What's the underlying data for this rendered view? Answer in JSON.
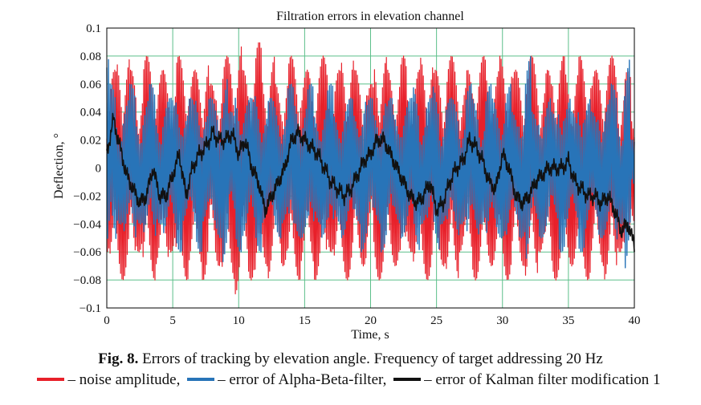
{
  "chart_data": {
    "type": "line",
    "title": "Filtration errors in elevation channel",
    "xlabel": "Time, s",
    "ylabel": "Deflection, °",
    "xlim": [
      0,
      40
    ],
    "ylim": [
      -0.1,
      0.1
    ],
    "x_ticks": [
      "0",
      "5",
      "10",
      "15",
      "20",
      "25",
      "30",
      "35",
      "40"
    ],
    "y_ticks": [
      "0.1",
      "0.08",
      "0.06",
      "0.04",
      "0.02",
      "0",
      "−0.02",
      "−0.04",
      "−0.06",
      "−0.08",
      "−0.1"
    ],
    "grid": true,
    "legend_position": "below",
    "series": [
      {
        "name": "noise amplitude",
        "color": "#e8202a",
        "note_samples_per_s": 20,
        "x": [
          0,
          0.5,
          1,
          1.5,
          2,
          2.5,
          3,
          3.5,
          4,
          4.5,
          5,
          5.5,
          6,
          6.5,
          7,
          7.5,
          8,
          8.5,
          9,
          9.5,
          10,
          10.5,
          11,
          11.5,
          12,
          12.5,
          13,
          13.5,
          14,
          14.5,
          15,
          15.5,
          16,
          16.5,
          17,
          17.5,
          18,
          18.5,
          19,
          19.5,
          20,
          20.5,
          21,
          21.5,
          22,
          22.5,
          23,
          23.5,
          24,
          24.5,
          25,
          25.5,
          26,
          26.5,
          27,
          27.5,
          28,
          28.5,
          29,
          29.5,
          30,
          30.5,
          31,
          31.5,
          32,
          32.5,
          33,
          33.5,
          34,
          34.5,
          35,
          35.5,
          36,
          36.5,
          37,
          37.5,
          38,
          38.5,
          39,
          39.5,
          40
        ],
        "y": [
          0.06,
          -0.07,
          0.08,
          -0.08,
          0.07,
          -0.06,
          0.08,
          -0.08,
          0.07,
          -0.07,
          0.06,
          -0.08,
          0.08,
          -0.07,
          0.07,
          -0.08,
          0.06,
          -0.07,
          0.08,
          -0.08,
          0.09,
          -0.07,
          0.08,
          -0.09,
          0.07,
          -0.08,
          0.06,
          -0.07,
          0.08,
          -0.08,
          0.07,
          -0.07,
          0.08,
          -0.08,
          0.06,
          -0.07,
          0.08,
          -0.08,
          0.07,
          -0.07,
          0.06,
          -0.08,
          0.08,
          -0.07,
          0.07,
          -0.08,
          0.06,
          -0.07,
          0.08,
          -0.08,
          0.07,
          -0.07,
          0.08,
          -0.08,
          0.06,
          -0.07,
          0.08,
          -0.08,
          0.07,
          -0.07,
          0.08,
          -0.08,
          0.07,
          -0.07,
          0.08,
          -0.08,
          0.06,
          -0.07,
          0.08,
          -0.08,
          0.07,
          -0.07,
          0.08,
          -0.08,
          0.07,
          -0.07,
          0.08,
          -0.08,
          0.06,
          -0.07,
          0.04
        ]
      },
      {
        "name": "error of Alpha-Beta-filter",
        "color": "#2874b8",
        "x": [
          0,
          0.5,
          1,
          1.5,
          2,
          2.5,
          3,
          3.5,
          4,
          4.5,
          5,
          5.5,
          6,
          6.5,
          7,
          7.5,
          8,
          8.5,
          9,
          9.5,
          10,
          10.5,
          11,
          11.5,
          12,
          12.5,
          13,
          13.5,
          14,
          14.5,
          15,
          15.5,
          16,
          16.5,
          17,
          17.5,
          18,
          18.5,
          19,
          19.5,
          20,
          20.5,
          21,
          21.5,
          22,
          22.5,
          23,
          23.5,
          24,
          24.5,
          25,
          25.5,
          26,
          26.5,
          27,
          27.5,
          28,
          28.5,
          29,
          29.5,
          30,
          30.5,
          31,
          31.5,
          32,
          32.5,
          33,
          33.5,
          34,
          34.5,
          35,
          35.5,
          36,
          36.5,
          37,
          37.5,
          38,
          38.5,
          39,
          39.5,
          40
        ],
        "y": [
          0.08,
          -0.06,
          0.04,
          -0.05,
          0.06,
          -0.04,
          0.05,
          -0.06,
          0.04,
          -0.05,
          0.05,
          -0.06,
          0.04,
          -0.05,
          0.06,
          -0.04,
          0.05,
          -0.05,
          0.07,
          -0.04,
          0.06,
          -0.05,
          0.05,
          -0.06,
          0.04,
          -0.05,
          0.05,
          -0.04,
          0.06,
          -0.05,
          0.05,
          -0.06,
          0.04,
          -0.05,
          0.06,
          -0.04,
          0.05,
          -0.05,
          0.04,
          -0.06,
          0.05,
          -0.04,
          0.06,
          -0.05,
          0.04,
          -0.05,
          0.05,
          -0.06,
          0.04,
          -0.05,
          0.06,
          -0.04,
          0.05,
          -0.05,
          0.04,
          -0.06,
          0.05,
          -0.04,
          0.06,
          -0.05,
          0.05,
          -0.06,
          0.04,
          -0.05,
          0.08,
          -0.04,
          0.05,
          -0.05,
          0.04,
          -0.06,
          0.05,
          -0.04,
          0.06,
          -0.05,
          0.04,
          -0.05,
          0.05,
          -0.06,
          0.04,
          -0.08,
          -0.02
        ]
      },
      {
        "name": "error of Kalman filter modification 1",
        "color": "#111111",
        "x": [
          0,
          0.5,
          1,
          1.5,
          2,
          2.5,
          3,
          3.5,
          4,
          4.5,
          5,
          5.5,
          6,
          6.5,
          7,
          7.5,
          8,
          8.5,
          9,
          9.5,
          10,
          10.5,
          11,
          11.5,
          12,
          12.5,
          13,
          13.5,
          14,
          14.5,
          15,
          15.5,
          16,
          16.5,
          17,
          17.5,
          18,
          18.5,
          19,
          19.5,
          20,
          20.5,
          21,
          21.5,
          22,
          22.5,
          23,
          23.5,
          24,
          24.5,
          25,
          25.5,
          26,
          26.5,
          27,
          27.5,
          28,
          28.5,
          29,
          29.5,
          30,
          30.5,
          31,
          31.5,
          32,
          32.5,
          33,
          33.5,
          34,
          34.5,
          35,
          35.5,
          36,
          36.5,
          37,
          37.5,
          38,
          38.5,
          39,
          39.5,
          40
        ],
        "y": [
          0.01,
          0.035,
          0.015,
          -0.005,
          -0.015,
          -0.025,
          -0.02,
          0.0,
          -0.02,
          -0.02,
          -0.005,
          0.01,
          -0.02,
          0.0,
          0.01,
          0.015,
          0.025,
          0.02,
          0.02,
          0.025,
          0.01,
          0.02,
          0.0,
          -0.01,
          -0.03,
          -0.02,
          -0.01,
          0.0,
          0.02,
          0.025,
          0.02,
          0.015,
          0.01,
          0.0,
          -0.01,
          -0.015,
          -0.02,
          -0.015,
          -0.005,
          0.005,
          0.01,
          0.02,
          0.02,
          0.01,
          0.0,
          -0.01,
          -0.02,
          -0.025,
          -0.02,
          -0.01,
          -0.03,
          -0.025,
          -0.01,
          0.0,
          0.005,
          0.02,
          0.015,
          0.005,
          -0.01,
          -0.015,
          0.01,
          0.0,
          -0.02,
          -0.025,
          -0.02,
          -0.01,
          -0.005,
          0.0,
          0.0,
          0.0,
          0.005,
          -0.01,
          -0.015,
          -0.02,
          -0.02,
          -0.025,
          -0.02,
          -0.03,
          -0.045,
          -0.04,
          -0.055
        ]
      }
    ]
  },
  "caption": {
    "fig_label": "Fig. 8.",
    "text": " Errors of tracking by elevation angle. Frequency of target addressing 20 Hz"
  },
  "legend": {
    "noise": "– noise amplitude,",
    "alpha_beta": "– error of Alpha-Beta-filter,",
    "kalman": "– error of Kalman filter modification 1"
  }
}
